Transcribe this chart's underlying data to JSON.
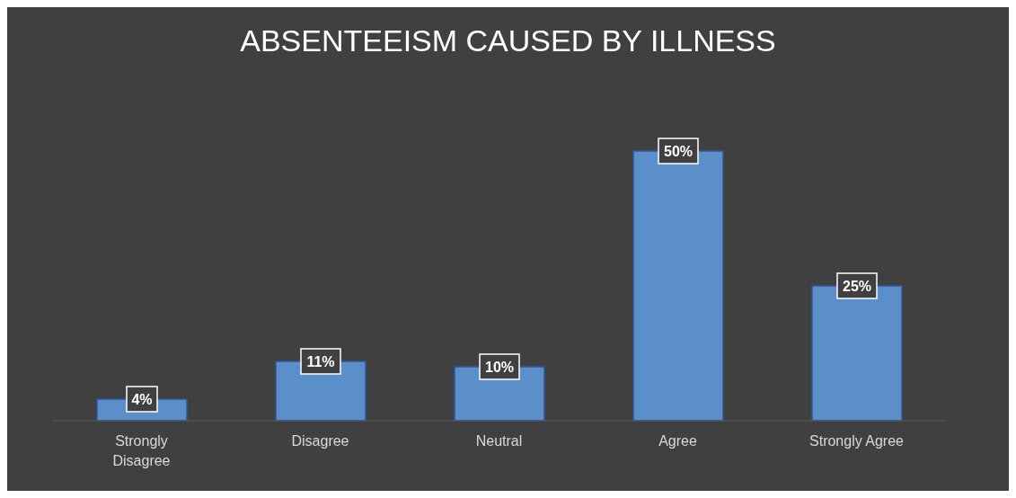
{
  "chart_data": {
    "type": "bar",
    "title": "ABSENTEEISM CAUSED BY ILLNESS",
    "categories": [
      "Strongly Disagree",
      "Disagree",
      "Neutral",
      "Agree",
      "Strongly Agree"
    ],
    "values": [
      4,
      11,
      10,
      50,
      25
    ],
    "value_labels": [
      "4%",
      "11%",
      "10%",
      "50%",
      "25%"
    ],
    "color": "#5b8fc9"
  }
}
